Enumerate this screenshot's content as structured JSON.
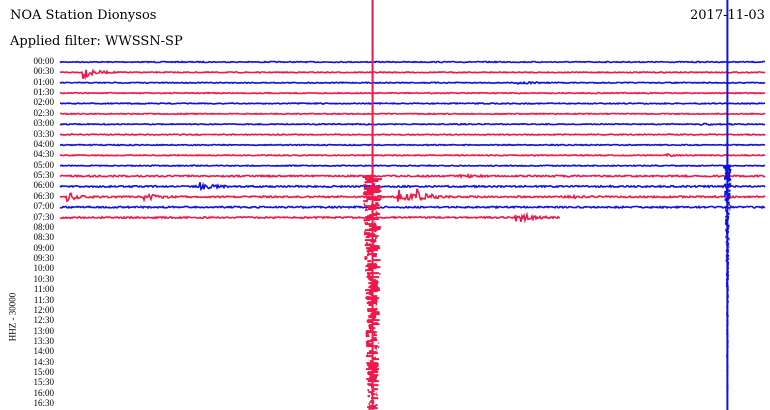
{
  "header": {
    "station": "NOA Station Dionysos",
    "filter": "Applied filter: WWSSN-SP",
    "date": "2017-11-03"
  },
  "chart_data": {
    "type": "line",
    "title": "NOA Station Dionysos",
    "subtitle": "Applied filter: WWSSN-SP",
    "date": "2017-11-03",
    "ylabel": "HHZ - 30000",
    "row_minutes": 30,
    "row_labels": [
      "00:00",
      "00:30",
      "01:00",
      "01:30",
      "02:00",
      "02:30",
      "03:00",
      "03:30",
      "04:00",
      "04:30",
      "05:00",
      "05:30",
      "06:00",
      "06:30",
      "07:00",
      "07:30",
      "08:00",
      "08:30",
      "09:00",
      "09:30",
      "10:00",
      "10:30",
      "11:00",
      "11:30",
      "12:00",
      "12:30",
      "13:00",
      "13:30",
      "14:00",
      "14:30",
      "15:00",
      "15:30",
      "16:00",
      "16:30"
    ],
    "rows_with_data": 16,
    "last_row_end_minute": 21.3,
    "colors": [
      "#1010e0",
      "#f01848"
    ],
    "events": [
      {
        "row": "00:30",
        "minute": 1.0,
        "amplitude": 1.5
      },
      {
        "row": "01:00",
        "minute": 19.5,
        "amplitude": 0.4
      },
      {
        "row": "03:00",
        "minute": 27.2,
        "amplitude": 0.3
      },
      {
        "row": "04:30",
        "minute": 25.8,
        "amplitude": 0.3
      },
      {
        "row": "05:30",
        "minute": 17.0,
        "amplitude": 0.4
      },
      {
        "row": "06:00",
        "minute": 6.0,
        "amplitude": 0.8
      },
      {
        "row": "06:30",
        "minute": 0.3,
        "amplitude": 1.0
      },
      {
        "row": "06:30",
        "minute": 3.6,
        "amplitude": 0.8
      },
      {
        "row": "06:30",
        "minute": 21.5,
        "amplitude": 0.5
      },
      {
        "row": "06:30",
        "minute": 13.3,
        "amplitude": 40
      },
      {
        "row": "06:30",
        "minute": 14.4,
        "amplitude": 1.8
      },
      {
        "row": "06:30",
        "minute": 15.2,
        "amplitude": 1.6
      },
      {
        "row": "07:30",
        "minute": 19.4,
        "amplitude": 1.6
      },
      {
        "row": "06:00",
        "minute": 28.4,
        "amplitude": 40
      }
    ]
  }
}
